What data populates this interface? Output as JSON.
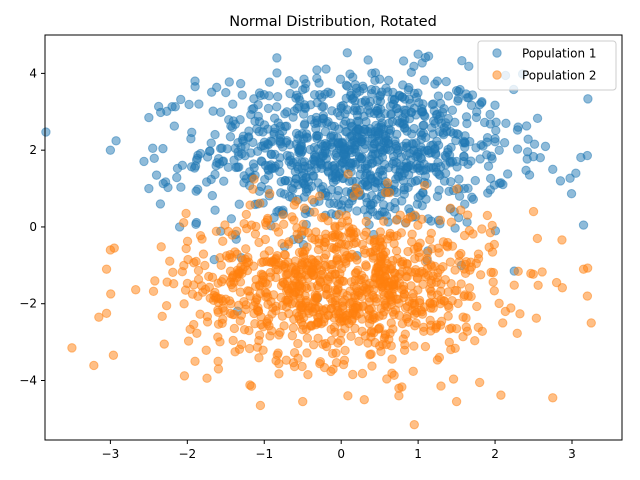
{
  "chart_data": {
    "type": "scatter",
    "title": "Normal Distribution, Rotated",
    "xlabel": "",
    "ylabel": "",
    "xlim": [
      -3.85,
      3.65
    ],
    "ylim": [
      -5.55,
      5.0
    ],
    "xticks": [
      -3,
      -2,
      -1,
      0,
      1,
      2,
      3
    ],
    "yticks": [
      -4,
      -2,
      0,
      2,
      4
    ],
    "grid": false,
    "legend_position": "top-right",
    "series": [
      {
        "name": "Population 1",
        "color": "#1f77b4",
        "alpha": 0.5,
        "marker": "circle",
        "distribution": {
          "mean_x": 0.2,
          "mean_y": 2.0,
          "std_x": 1.0,
          "std_y": 1.0,
          "count": 1000
        },
        "points": [
          [
            -3.0,
            2.0
          ],
          [
            -2.5,
            2.85
          ],
          [
            -2.4,
            1.35
          ],
          [
            -2.45,
            2.05
          ],
          [
            -1.9,
            3.8
          ],
          [
            -1.85,
            3.2
          ],
          [
            -1.5,
            3.5
          ],
          [
            0.15,
            3.9
          ],
          [
            0.35,
            4.35
          ],
          [
            1.0,
            4.5
          ],
          [
            0.5,
            3.85
          ],
          [
            0.8,
            3.7
          ],
          [
            1.25,
            3.8
          ],
          [
            1.5,
            3.55
          ],
          [
            2.3,
            2.6
          ],
          [
            2.75,
            1.5
          ],
          [
            3.05,
            1.4
          ],
          [
            2.85,
            1.2
          ],
          [
            3.15,
            0.05
          ],
          [
            2.25,
            -1.15
          ],
          [
            -1.65,
            -0.85
          ],
          [
            -1.3,
            -0.8
          ],
          [
            -2.1,
            0.0
          ],
          [
            -2.35,
            0.6
          ],
          [
            -2.5,
            1.0
          ],
          [
            -0.8,
            2.4
          ],
          [
            -0.2,
            2.1
          ],
          [
            0.4,
            2.3
          ],
          [
            0.9,
            1.6
          ],
          [
            1.3,
            2.7
          ],
          [
            -0.5,
            1.2
          ],
          [
            0.1,
            0.6
          ],
          [
            0.6,
            0.9
          ],
          [
            1.6,
            1.0
          ],
          [
            2.0,
            2.3
          ]
        ]
      },
      {
        "name": "Population 2",
        "color": "#ff7f0e",
        "alpha": 0.5,
        "marker": "circle",
        "distribution": {
          "mean_x": 0.0,
          "mean_y": -1.5,
          "std_x": 1.0,
          "std_y": 1.0,
          "count": 1000
        },
        "points": [
          [
            -3.5,
            -3.15
          ],
          [
            -3.15,
            -2.35
          ],
          [
            -3.05,
            -2.25
          ],
          [
            -3.0,
            -0.6
          ],
          [
            -2.95,
            -0.55
          ],
          [
            -3.05,
            -1.1
          ],
          [
            -2.3,
            -3.05
          ],
          [
            -1.9,
            -3.5
          ],
          [
            -1.6,
            -3.5
          ],
          [
            -1.05,
            -4.65
          ],
          [
            -0.5,
            -4.55
          ],
          [
            0.3,
            -4.5
          ],
          [
            0.75,
            -4.2
          ],
          [
            0.75,
            -4.4
          ],
          [
            0.95,
            -5.15
          ],
          [
            1.5,
            -4.55
          ],
          [
            1.8,
            -4.05
          ],
          [
            2.75,
            -4.45
          ],
          [
            3.25,
            -2.5
          ],
          [
            3.2,
            -1.8
          ],
          [
            3.15,
            -1.1
          ],
          [
            2.8,
            -1.45
          ],
          [
            2.55,
            -0.3
          ],
          [
            2.5,
            0.4
          ],
          [
            1.9,
            0.3
          ],
          [
            -1.2,
            -2.7
          ],
          [
            -0.5,
            -1.0
          ],
          [
            0.2,
            -1.6
          ],
          [
            0.8,
            -0.9
          ],
          [
            1.4,
            -2.1
          ],
          [
            -0.3,
            -2.9
          ],
          [
            0.5,
            -3.1
          ],
          [
            1.1,
            -1.3
          ],
          [
            -1.8,
            -1.7
          ],
          [
            2.1,
            -2.5
          ]
        ]
      }
    ]
  }
}
